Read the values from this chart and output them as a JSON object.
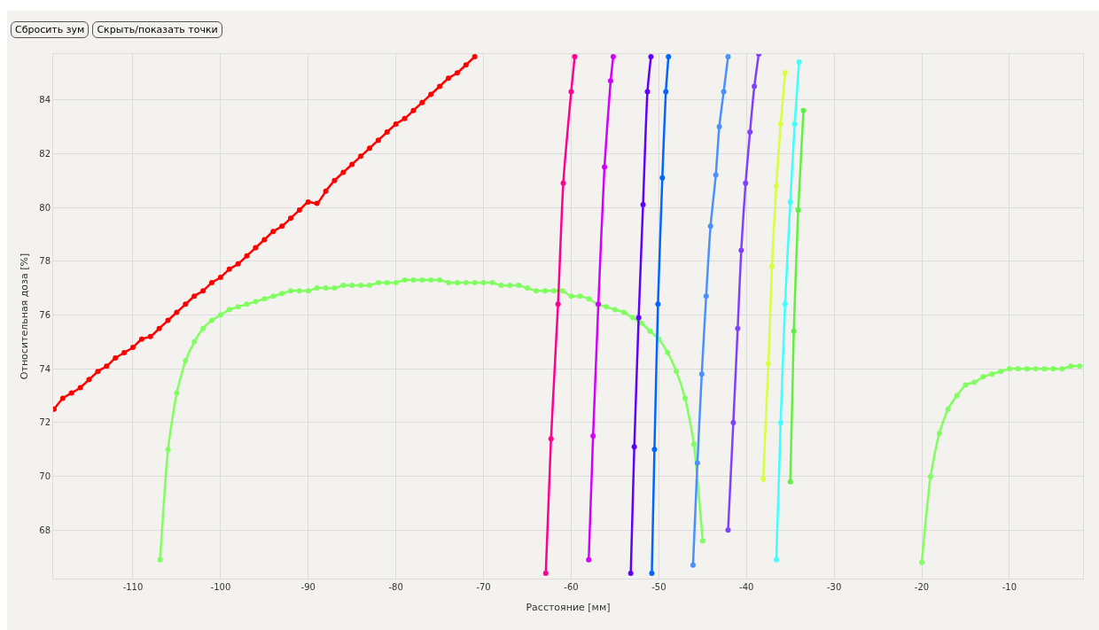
{
  "chart_data": {
    "type": "line",
    "xlabel": "Расстояние [мм]",
    "ylabel": "Относительная доза [%]",
    "annotations": [
      "Сбросить зум",
      "Скрыть/показать точки"
    ],
    "xlim": [
      -119.1,
      -1.6
    ],
    "ylim": [
      66.2,
      85.7
    ],
    "xticks": [
      -110,
      -100,
      -90,
      -80,
      -70,
      -60,
      -50,
      -40,
      -30,
      -20,
      -10
    ],
    "yticks": [
      68,
      70,
      72,
      74,
      76,
      78,
      80,
      82,
      84
    ],
    "grid": true,
    "marker": "circle",
    "line_style": "solid",
    "series": [
      {
        "color": "#ff0000",
        "x": [
          -119,
          -118,
          -117,
          -116,
          -115,
          -114,
          -113,
          -112,
          -111,
          -110,
          -109,
          -108,
          -107,
          -106,
          -105,
          -104,
          -103,
          -102,
          -101,
          -100,
          -99,
          -98,
          -97,
          -96,
          -95,
          -94,
          -93,
          -92,
          -91,
          -90,
          -89,
          -88,
          -87,
          -86,
          -85,
          -84,
          -83,
          -82,
          -81,
          -80,
          -79,
          -78,
          -77,
          -76,
          -75,
          -74,
          -73,
          -72,
          -71
        ],
        "values": [
          72.5,
          72.9,
          73.1,
          73.3,
          73.6,
          73.9,
          74.1,
          74.4,
          74.6,
          74.8,
          75.1,
          75.2,
          75.5,
          75.8,
          76.1,
          76.4,
          76.7,
          76.9,
          77.2,
          77.4,
          77.7,
          77.9,
          78.2,
          78.5,
          78.8,
          79.1,
          79.3,
          79.6,
          79.9,
          80.2,
          80.15,
          80.6,
          81.0,
          81.3,
          81.6,
          81.9,
          82.2,
          82.5,
          82.8,
          83.1,
          83.3,
          83.6,
          83.9,
          84.2,
          84.5,
          84.8,
          85.0,
          85.3,
          85.6
        ]
      },
      {
        "color": "#80ff60",
        "x": [
          -106.9,
          -106,
          -105,
          -104,
          -103,
          -102,
          -101,
          -100,
          -99,
          -98,
          -97,
          -96,
          -95,
          -94,
          -93,
          -92,
          -91,
          -90,
          -89,
          -88,
          -87,
          -86,
          -85,
          -84,
          -83,
          -82,
          -81,
          -80,
          -79,
          -78,
          -77,
          -76,
          -75,
          -74,
          -73,
          -72,
          -71,
          -70,
          -69,
          -68,
          -67,
          -66,
          -65,
          -64,
          -63,
          -62,
          -61,
          -60,
          -59,
          -58,
          -57,
          -56,
          -55,
          -54,
          -53,
          -52,
          -51,
          -50,
          -49,
          -48,
          -47,
          -46,
          -45
        ],
        "values": [
          66.9,
          71.0,
          73.1,
          74.3,
          75.0,
          75.5,
          75.8,
          76.0,
          76.2,
          76.3,
          76.4,
          76.5,
          76.6,
          76.7,
          76.8,
          76.9,
          76.9,
          76.9,
          77.0,
          77.0,
          77.0,
          77.1,
          77.1,
          77.1,
          77.1,
          77.2,
          77.2,
          77.2,
          77.3,
          77.3,
          77.3,
          77.3,
          77.3,
          77.2,
          77.2,
          77.2,
          77.2,
          77.2,
          77.2,
          77.1,
          77.1,
          77.1,
          77.0,
          76.9,
          76.9,
          76.9,
          76.9,
          76.7,
          76.7,
          76.6,
          76.4,
          76.3,
          76.2,
          76.1,
          75.9,
          75.7,
          75.4,
          75.1,
          74.6,
          73.9,
          72.9,
          71.2,
          67.6
        ]
      },
      {
        "color": "#80ff60",
        "x": [
          -20,
          -19,
          -18,
          -17,
          -16,
          -15,
          -14,
          -13,
          -12,
          -11,
          -10,
          -9,
          -8,
          -7,
          -6,
          -5,
          -4,
          -3,
          -2
        ],
        "values": [
          66.8,
          70.0,
          71.6,
          72.5,
          73.0,
          73.4,
          73.5,
          73.7,
          73.8,
          73.9,
          74.0,
          74.0,
          74.0,
          74.0,
          74.0,
          74.0,
          74.0,
          74.1,
          74.1
        ]
      },
      {
        "color": "#ff0090",
        "x": [
          -62.9,
          -62.3,
          -61.5,
          -60.9,
          -60.0,
          -59.6
        ],
        "values": [
          66.4,
          71.4,
          76.4,
          80.9,
          84.3,
          85.6
        ]
      },
      {
        "color": "#d400ff",
        "x": [
          -58.0,
          -57.5,
          -56.9,
          -56.2,
          -55.5,
          -55.2
        ],
        "values": [
          66.9,
          71.5,
          76.4,
          81.5,
          84.7,
          85.6
        ]
      },
      {
        "color": "#6000ff",
        "x": [
          -53.2,
          -52.8,
          -52.3,
          -51.8,
          -51.3,
          -50.9
        ],
        "values": [
          66.4,
          71.1,
          75.9,
          80.1,
          84.3,
          85.6
        ]
      },
      {
        "color": "#0066ff",
        "x": [
          -50.8,
          -50.5,
          -50.1,
          -49.6,
          -49.2,
          -48.9
        ],
        "values": [
          66.4,
          71.0,
          76.4,
          81.1,
          84.3,
          85.6
        ]
      },
      {
        "color": "#4a90ff",
        "x": [
          -46.1,
          -45.6,
          -45.1,
          -44.6,
          -44.1,
          -43.5,
          -43.1,
          -42.6,
          -42.1
        ],
        "values": [
          66.7,
          70.5,
          73.8,
          76.7,
          79.3,
          81.2,
          83.0,
          84.3,
          85.6
        ]
      },
      {
        "color": "#8040ff",
        "x": [
          -42.1,
          -41.5,
          -41.0,
          -40.6,
          -40.1,
          -39.6,
          -39.1,
          -38.6
        ],
        "values": [
          68.0,
          72.0,
          75.5,
          78.4,
          80.9,
          82.8,
          84.5,
          85.7
        ]
      },
      {
        "color": "#d8ff40",
        "x": [
          -38.1,
          -37.5,
          -37.1,
          -36.6,
          -36.1,
          -35.6
        ],
        "values": [
          69.9,
          74.2,
          77.8,
          80.8,
          83.1,
          85.0
        ]
      },
      {
        "color": "#40ffff",
        "x": [
          -36.6,
          -36.1,
          -35.6,
          -35.0,
          -34.5,
          -34.0
        ],
        "values": [
          66.9,
          72.0,
          76.4,
          80.2,
          83.1,
          85.4
        ]
      },
      {
        "color": "#60f040",
        "x": [
          -35.0,
          -34.6,
          -34.1,
          -33.5
        ],
        "values": [
          69.8,
          75.4,
          79.9,
          83.6
        ]
      }
    ]
  }
}
